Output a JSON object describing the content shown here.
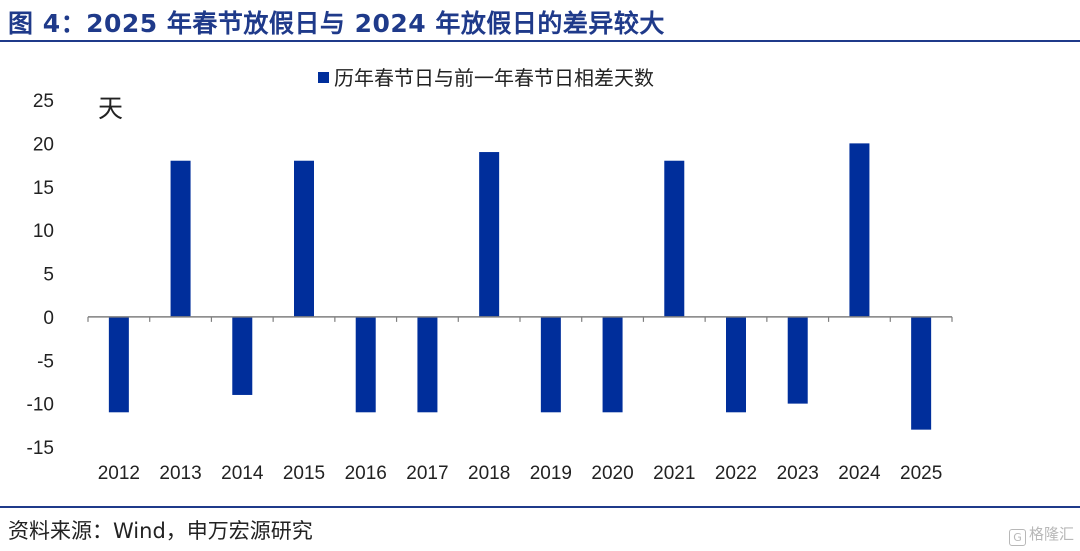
{
  "header": {
    "title": "图 4：2025 年春节放假日与 2024 年放假日的差异较大"
  },
  "footer": {
    "source": "资料来源：Wind，申万宏源研究",
    "watermark": "格隆汇"
  },
  "colors": {
    "bar": "#002e9b",
    "title": "#1f3a8a",
    "axis": "#7f7f7f"
  },
  "chart_data": {
    "type": "bar",
    "title": "",
    "ylabel": "天",
    "xlabel": "",
    "ylim": [
      -15,
      25
    ],
    "yticks": [
      25,
      20,
      15,
      10,
      5,
      0,
      -5,
      -10,
      -15
    ],
    "grid": false,
    "legend": "top-center",
    "categories": [
      "2012",
      "2013",
      "2014",
      "2015",
      "2016",
      "2017",
      "2018",
      "2019",
      "2020",
      "2021",
      "2022",
      "2023",
      "2024",
      "2025"
    ],
    "series": [
      {
        "name": "历年春节日与前一年春节日相差天数",
        "values": [
          -11,
          18,
          -9,
          18,
          -11,
          -11,
          19,
          -11,
          -11,
          18,
          -11,
          -10,
          20,
          -13
        ]
      }
    ]
  }
}
